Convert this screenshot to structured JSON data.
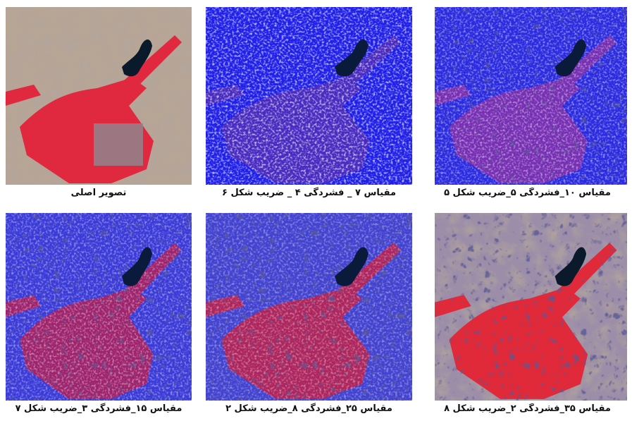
{
  "panels": [
    {
      "caption": "تصویر اصلی"
    },
    {
      "caption": "مقیاس ۷ _ فشردگی ۴ _ ضریب شکل ۶"
    },
    {
      "caption": "مقیاس ۱۰_فشردگی ۵_ضریب شکل ۵"
    },
    {
      "caption": "مقیاس ۱۵_فشردگی ۳_ضریب شکل ۷"
    },
    {
      "caption": "مقیاس ۲۵_فشردگی ۸_ضریب شکل ۲"
    },
    {
      "caption": "مقیاس ۳۵_فشردگی ۲_ضریب شکل ۸"
    }
  ]
}
